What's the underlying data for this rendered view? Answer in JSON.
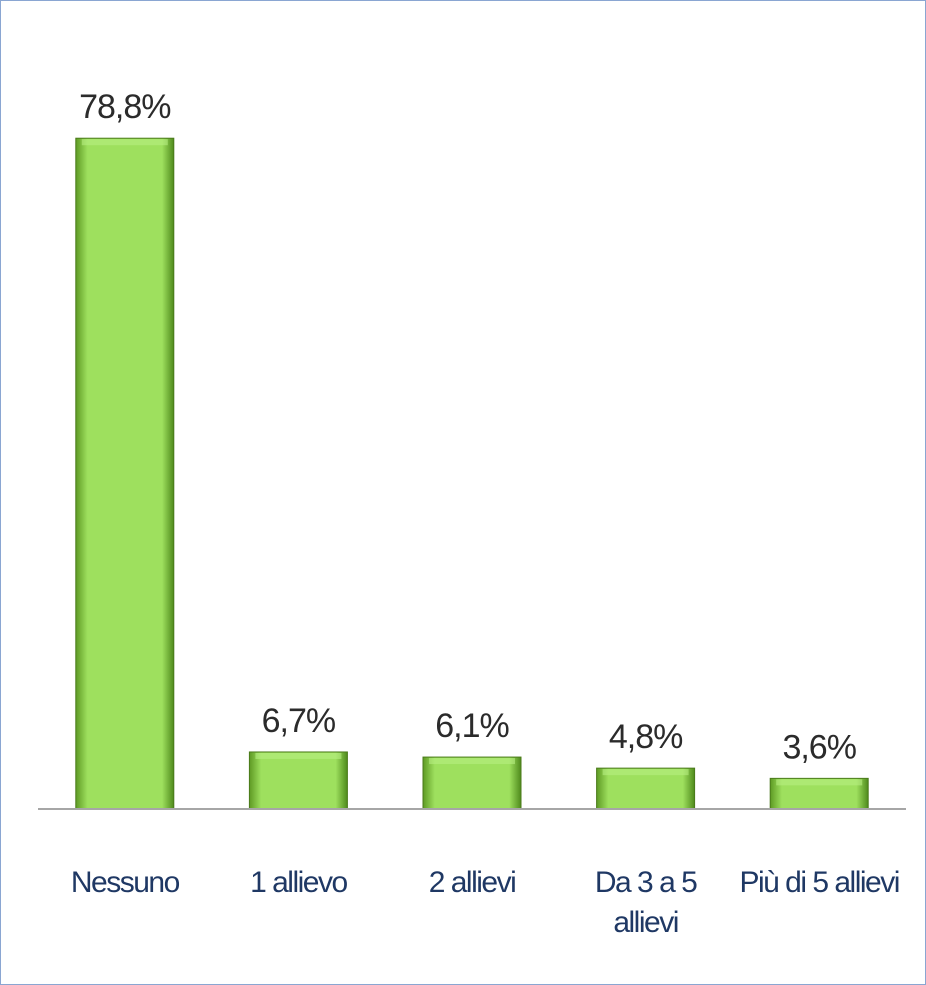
{
  "chart_data": {
    "type": "bar",
    "categories": [
      "Nessuno",
      "1 allievo",
      "2 allievi",
      "Da 3 a 5 allievi",
      "Più di 5 allievi"
    ],
    "values": [
      78.8,
      6.7,
      6.1,
      4.8,
      3.6
    ],
    "value_labels": [
      "78,8%",
      "6,7%",
      "6,1%",
      "4,8%",
      "3,6%"
    ],
    "color": "#92d050",
    "ylim": [
      0,
      80
    ]
  }
}
